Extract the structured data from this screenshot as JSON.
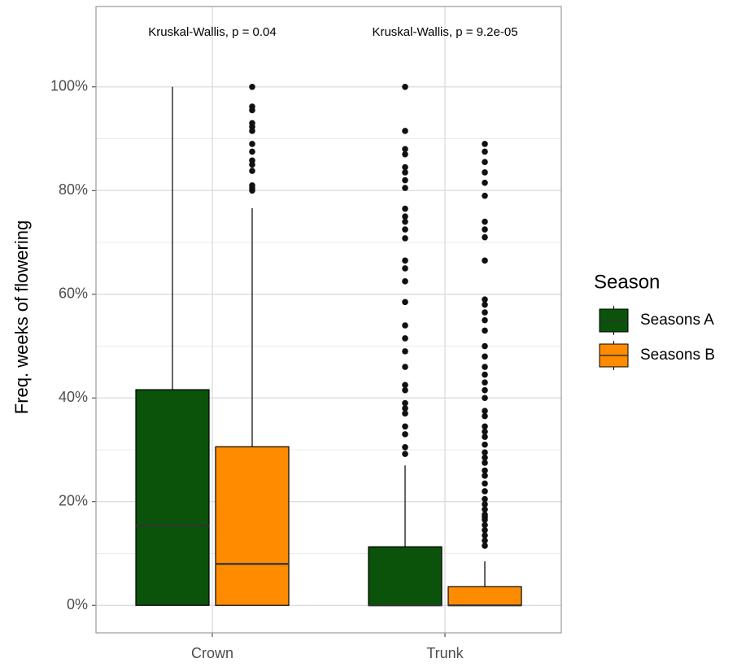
{
  "chart_data": {
    "type": "boxplot",
    "y_label": "Freq. weeks of flowering",
    "categories": [
      "Crown",
      "Trunk"
    ],
    "annotations": [
      "Kruskal-Wallis, p = 0.04",
      "Kruskal-Wallis, p = 9.2e-05"
    ],
    "legend_title": "Season",
    "legend": "right",
    "grid": true,
    "ylim": [
      -5.3,
      115.5
    ],
    "yticks": [
      {
        "value": 0,
        "label": "0%"
      },
      {
        "value": 20,
        "label": "20%"
      },
      {
        "value": 40,
        "label": "40%"
      },
      {
        "value": 60,
        "label": "60%"
      },
      {
        "value": 80,
        "label": "80%"
      },
      {
        "value": 100,
        "label": "100%"
      }
    ],
    "series": [
      {
        "name": "Seasons A",
        "color": "#0b520b",
        "boxes": [
          {
            "whisker_low": 0,
            "q1": 0,
            "median": 15.4,
            "q3": 41.6,
            "whisker_high": 100,
            "outliers": []
          },
          {
            "whisker_low": 0,
            "q1": 0,
            "median": 0,
            "q3": 11.3,
            "whisker_high": 27.0,
            "outliers": [
              29.2,
              30.5,
              33,
              34.5,
              37,
              38,
              39,
              41.5,
              42.5,
              46,
              49,
              51.5,
              54,
              58.5,
              62.5,
              65,
              66.5,
              70.8,
              72.5,
              74,
              75,
              76.5,
              80.5,
              82,
              83.5,
              84.5,
              87,
              88,
              91.5,
              100
            ]
          }
        ]
      },
      {
        "name": "Seasons B",
        "color": "#ff8c00",
        "boxes": [
          {
            "whisker_low": 0,
            "q1": 0,
            "median": 8.0,
            "q3": 30.6,
            "whisker_high": 76.6,
            "outliers": [
              80,
              80.5,
              81,
              83.8,
              85,
              85.8,
              87.5,
              89,
              91.5,
              92.3,
              93,
              95.5,
              96.2,
              100
            ]
          },
          {
            "whisker_low": 0,
            "q1": 0,
            "median": 0,
            "q3": 3.6,
            "whisker_high": 8.5,
            "outliers": [
              11.5,
              12.5,
              13.5,
              14.5,
              15.5,
              16.5,
              17,
              17.5,
              18.5,
              19.5,
              20.5,
              22,
              23.5,
              25,
              26,
              27.5,
              28.5,
              29.5,
              31,
              32.5,
              33.5,
              34.5,
              36.5,
              37.5,
              40,
              41.5,
              43,
              44.5,
              46,
              48,
              50,
              53,
              55,
              56.5,
              58,
              59,
              66.5,
              71,
              72.5,
              74,
              79,
              81.5,
              83.5,
              85.5,
              87.5,
              89
            ]
          }
        ]
      }
    ]
  }
}
